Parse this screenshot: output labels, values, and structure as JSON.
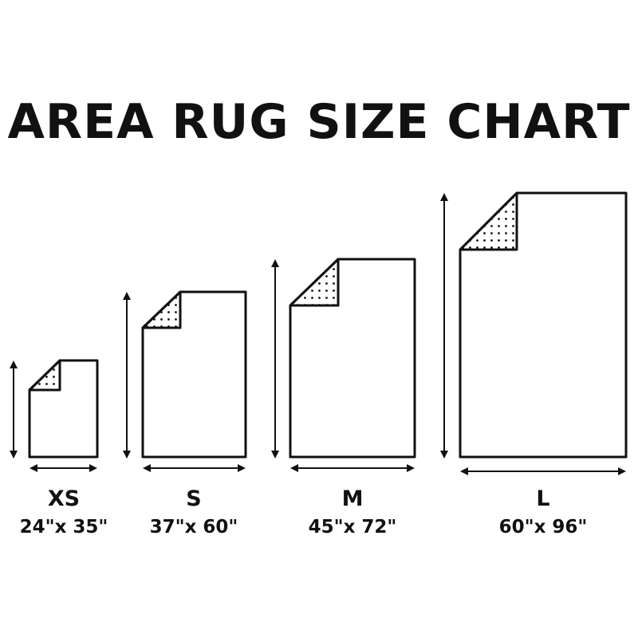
{
  "title": "AREA RUG SIZE CHART",
  "colors": {
    "line": "#111111",
    "background": "#ffffff"
  },
  "rugs": [
    {
      "size": "XS",
      "dimensions": "24\"x 35\"",
      "width_in": 24,
      "length_in": 35
    },
    {
      "size": "S",
      "dimensions": "37\"x 60\"",
      "width_in": 37,
      "length_in": 60
    },
    {
      "size": "M",
      "dimensions": "45\"x 72\"",
      "width_in": 45,
      "length_in": 72
    },
    {
      "size": "L",
      "dimensions": "60\"x 96\"",
      "width_in": 60,
      "length_in": 96
    }
  ]
}
